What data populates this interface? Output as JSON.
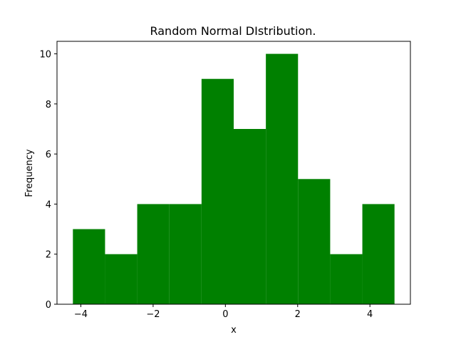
{
  "chart_data": {
    "type": "bar",
    "title": "Random Normal DIstribution.",
    "xlabel": "x",
    "ylabel": "Frequency",
    "bin_edges": [
      -4.22,
      -3.33,
      -2.44,
      -1.55,
      -0.66,
      0.23,
      1.12,
      2.01,
      2.9,
      3.79,
      4.68
    ],
    "values": [
      3,
      2,
      4,
      4,
      9,
      7,
      10,
      5,
      2,
      4
    ],
    "xlim": [
      -4.66,
      5.12
    ],
    "ylim": [
      0,
      10.5
    ],
    "xticks": [
      -4,
      -2,
      0,
      2,
      4
    ],
    "xtick_labels": [
      "−4",
      "−2",
      "0",
      "2",
      "4"
    ],
    "yticks": [
      0,
      2,
      4,
      6,
      8,
      10
    ],
    "ytick_labels": [
      "0",
      "2",
      "4",
      "6",
      "8",
      "10"
    ],
    "bar_color": "#008000",
    "grid": false,
    "legend": "none"
  }
}
